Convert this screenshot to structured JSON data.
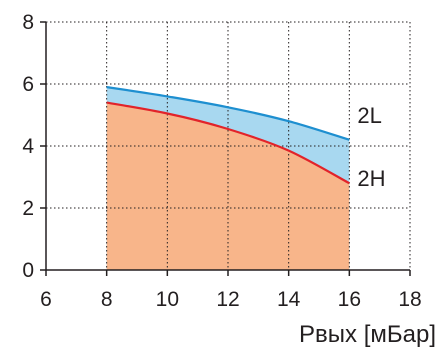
{
  "chart_data": {
    "type": "area",
    "x_ticks": [
      6,
      8,
      10,
      12,
      14,
      16,
      18
    ],
    "y_ticks": [
      0,
      2,
      4,
      6,
      8
    ],
    "xlim": [
      6,
      18
    ],
    "ylim": [
      0,
      8
    ],
    "xlabel": "Рвых [мБар]",
    "ylabel": "",
    "grid": true,
    "series": [
      {
        "name": "2L",
        "x": [
          8,
          10,
          12,
          14,
          16
        ],
        "y": [
          5.9,
          5.6,
          5.25,
          4.8,
          4.2
        ],
        "line_color": "#1e8fd0",
        "fill_color": "#a8d8f0"
      },
      {
        "name": "2H",
        "x": [
          8,
          10,
          12,
          14,
          16
        ],
        "y": [
          5.4,
          5.05,
          4.55,
          3.85,
          2.8
        ],
        "line_color": "#e2232a",
        "fill_color": "#f8b58a"
      }
    ]
  }
}
